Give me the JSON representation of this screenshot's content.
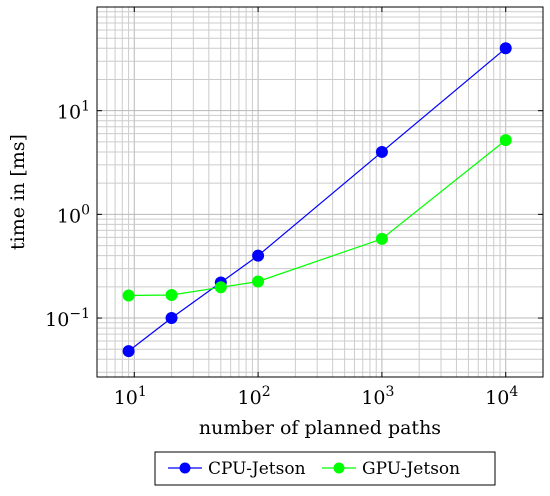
{
  "chart_data": {
    "type": "line",
    "xscale": "log",
    "yscale": "log",
    "xlabel": "number of planned paths",
    "ylabel": "time in [ms]",
    "xlim": [
      5,
      20000
    ],
    "ylim": [
      0.027,
      100
    ],
    "grid": true,
    "legend_position": "bottom-outside",
    "x_ticks": [
      {
        "value": 10,
        "base": "10",
        "exp": "1"
      },
      {
        "value": 100,
        "base": "10",
        "exp": "2"
      },
      {
        "value": 1000,
        "base": "10",
        "exp": "3"
      },
      {
        "value": 10000,
        "base": "10",
        "exp": "4"
      }
    ],
    "y_ticks": [
      {
        "value": 0.1,
        "base": "10",
        "exp": "−1"
      },
      {
        "value": 1,
        "base": "10",
        "exp": "0"
      },
      {
        "value": 10,
        "base": "10",
        "exp": "1"
      }
    ],
    "series": [
      {
        "name": "CPU-Jetson",
        "color": "#0000ff",
        "x": [
          9,
          20,
          50,
          100,
          1000,
          10000
        ],
        "values": [
          0.048,
          0.1,
          0.22,
          0.4,
          4.0,
          40.0
        ]
      },
      {
        "name": "GPU-Jetson",
        "color": "#00ff00",
        "x": [
          9,
          20,
          50,
          100,
          1000,
          10000
        ],
        "values": [
          0.165,
          0.167,
          0.198,
          0.225,
          0.58,
          5.2
        ]
      }
    ]
  }
}
